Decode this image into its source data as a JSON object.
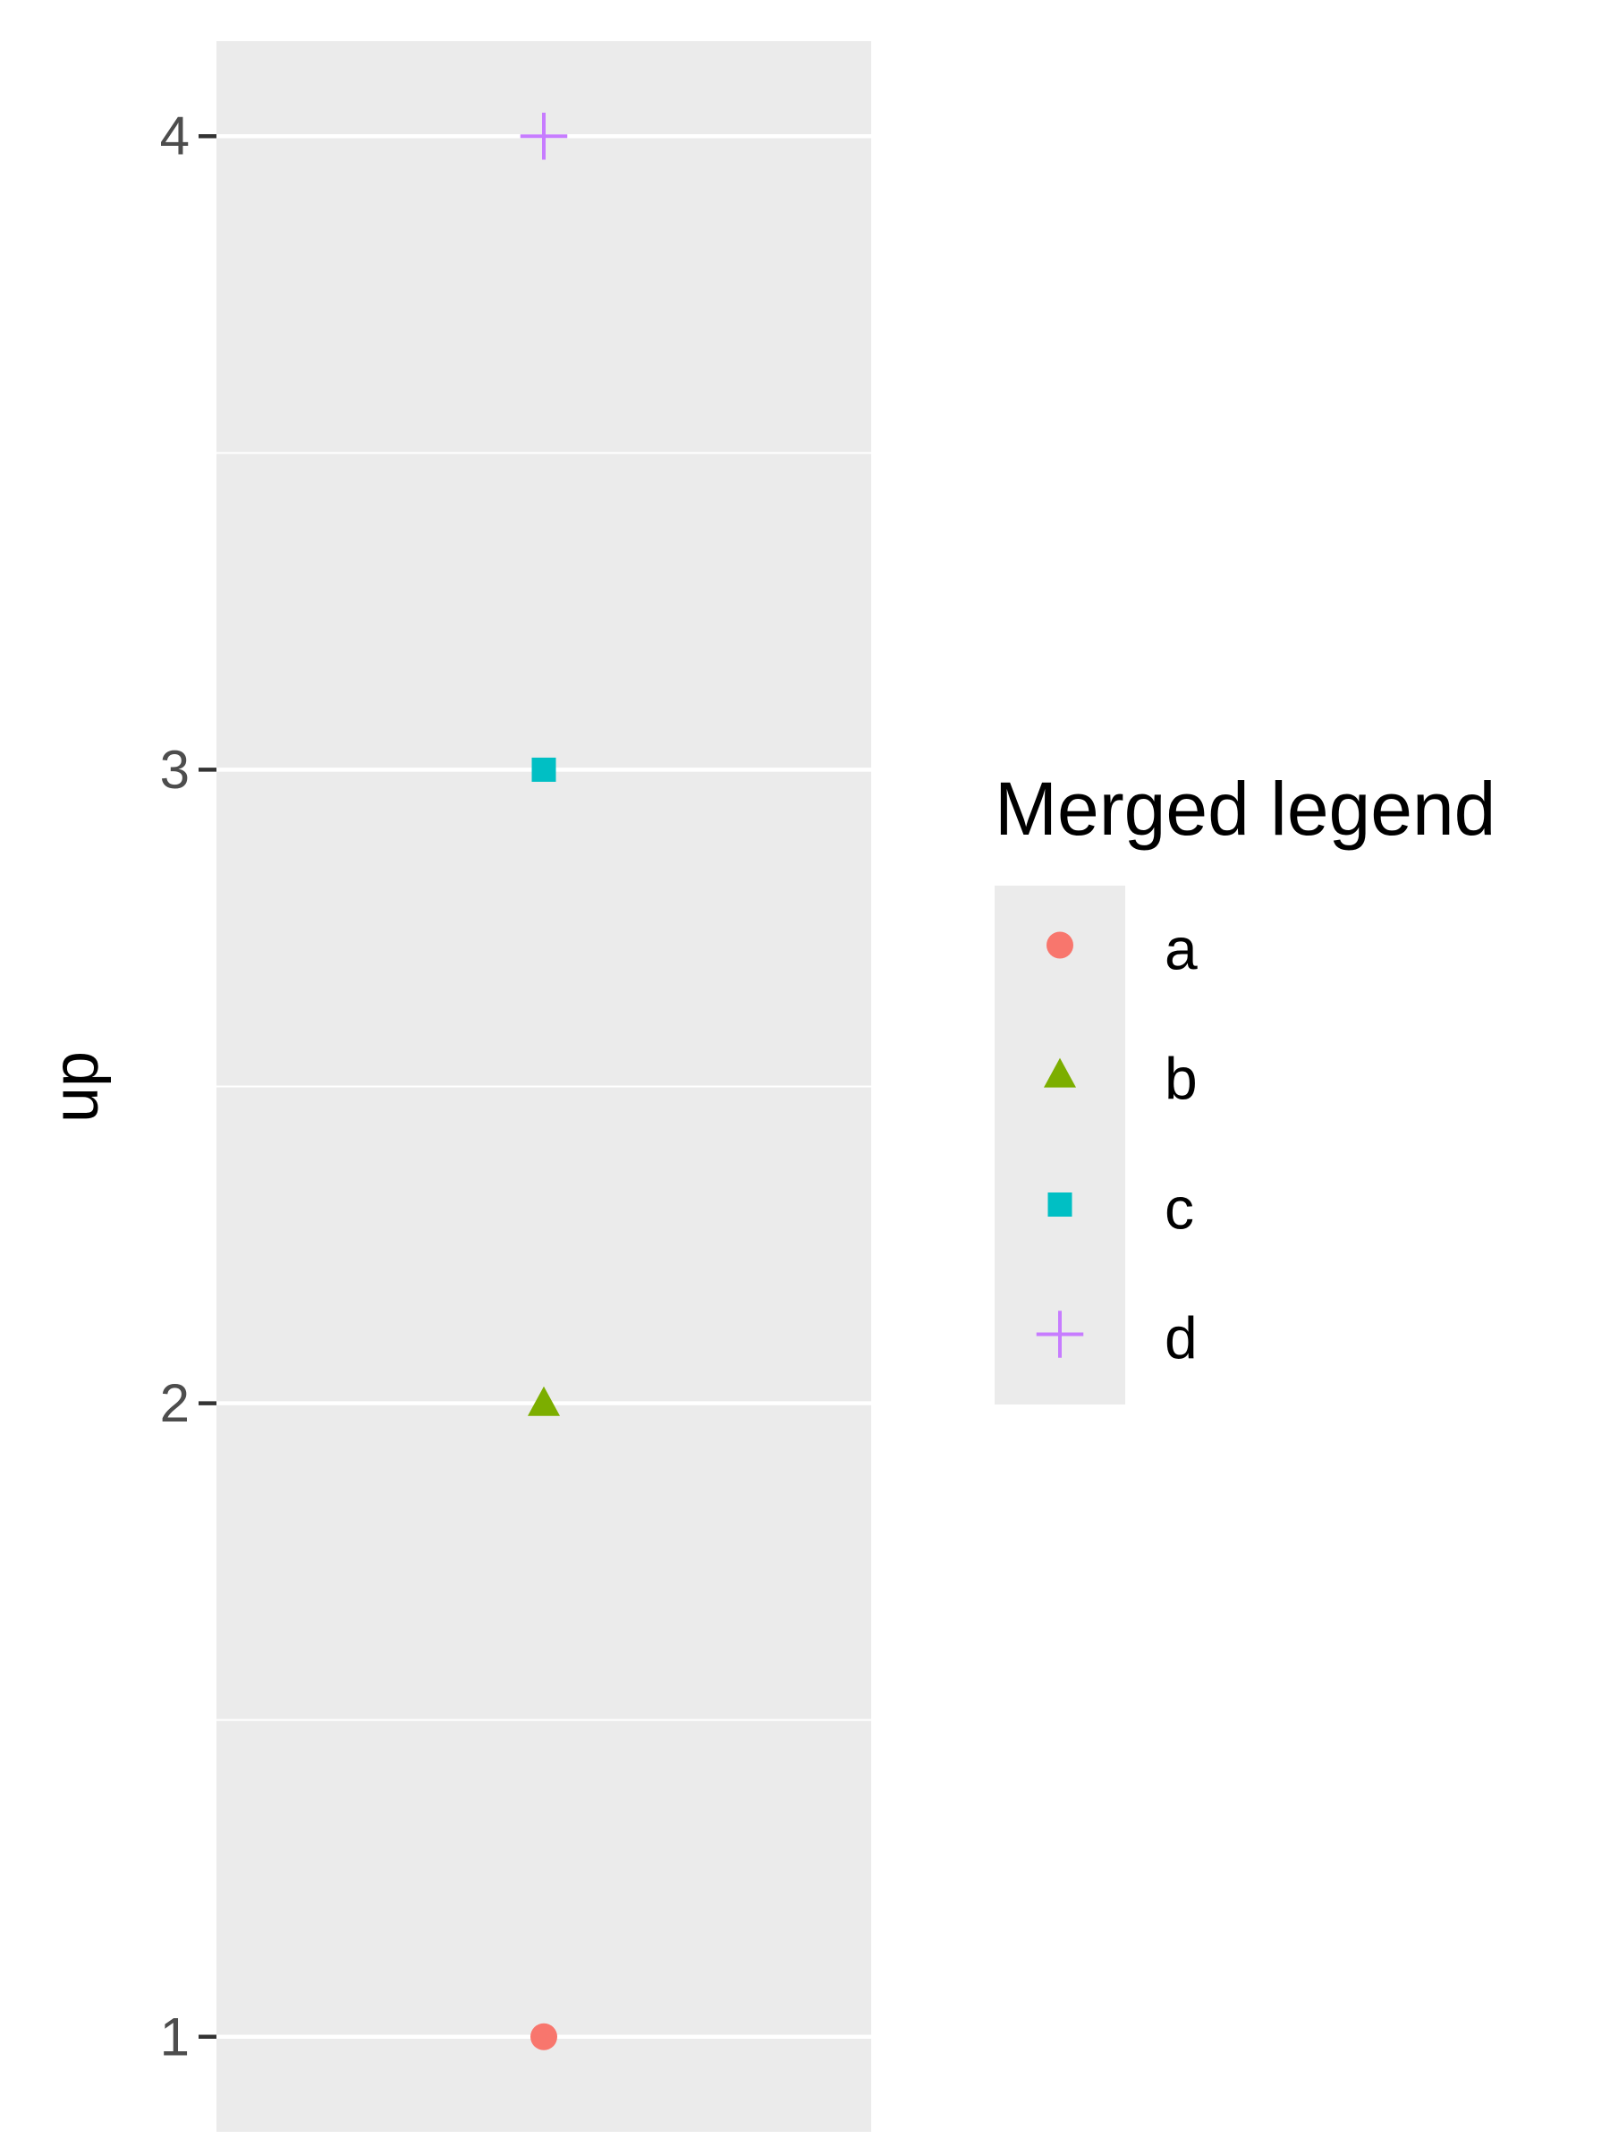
{
  "chart_data": {
    "type": "scatter",
    "title": "",
    "xlabel": "",
    "ylabel": "up",
    "ylim": [
      0.85,
      4.15
    ],
    "yticks": [
      1,
      2,
      3,
      4
    ],
    "ytick_labels": [
      "1",
      "2",
      "3",
      "4"
    ],
    "grid": true,
    "legend_position": "right",
    "legend_title": "Merged legend",
    "series": [
      {
        "name": "a",
        "x": [
          1
        ],
        "y": [
          1
        ],
        "color": "#F8766D",
        "shape": "circle"
      },
      {
        "name": "b",
        "x": [
          1
        ],
        "y": [
          2
        ],
        "color": "#7CAE00",
        "shape": "triangle"
      },
      {
        "name": "c",
        "x": [
          1
        ],
        "y": [
          3
        ],
        "color": "#00BFC4",
        "shape": "square"
      },
      {
        "name": "d",
        "x": [
          1
        ],
        "y": [
          4
        ],
        "color": "#C77CFF",
        "shape": "plus"
      }
    ]
  },
  "colors": {
    "panel_background": "#EBEBEB",
    "grid_line": "#FFFFFF",
    "tick_color": "#333333"
  }
}
